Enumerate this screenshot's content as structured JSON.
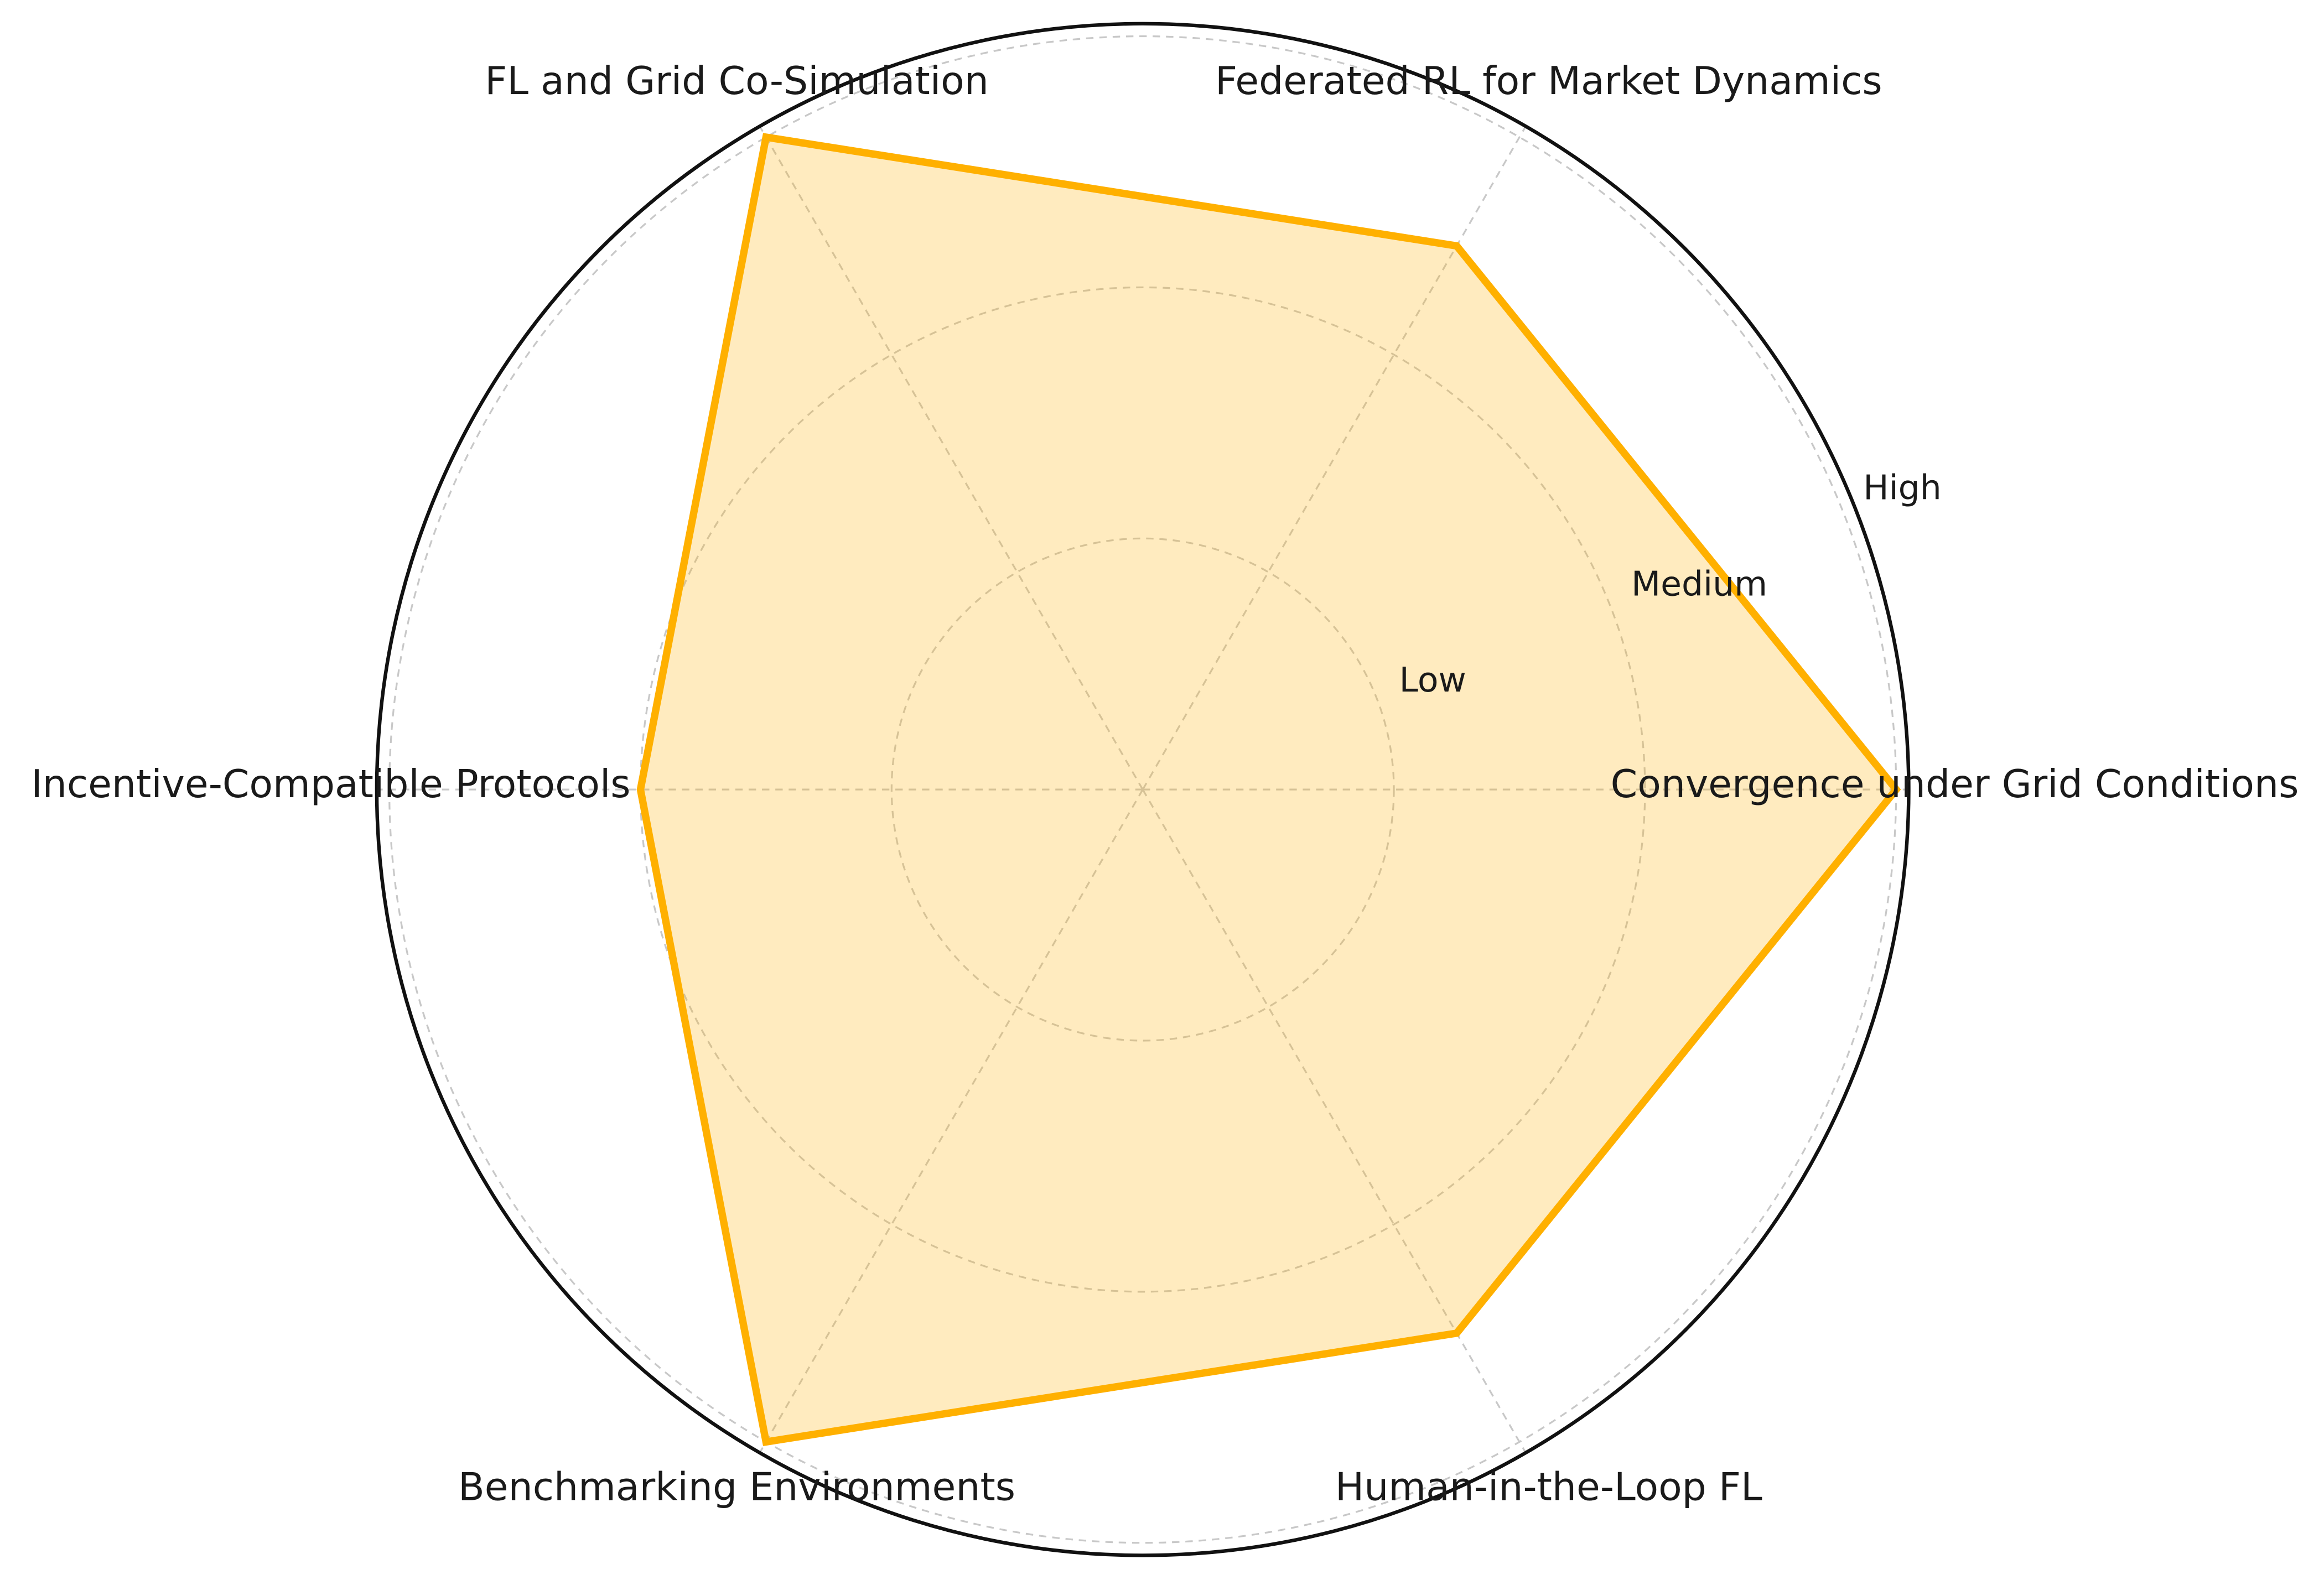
{
  "chart_data": {
    "type": "radar",
    "categories": [
      "Convergence under Grid Conditions",
      "Federated RL for Market Dynamics",
      "FL and Grid Co-Simulation",
      "Incentive-Compatible Protocols",
      "Benchmarking Environments",
      "Human-in-the-Loop FL"
    ],
    "values": [
      3,
      2.5,
      3,
      2,
      3,
      2.5
    ],
    "color": "#FFB000",
    "ylim": [
      0,
      3.05
    ],
    "yticks": [
      {
        "value": 1,
        "label": "Low"
      },
      {
        "value": 2,
        "label": "Medium"
      },
      {
        "value": 3,
        "label": "High"
      }
    ],
    "grid": true
  }
}
